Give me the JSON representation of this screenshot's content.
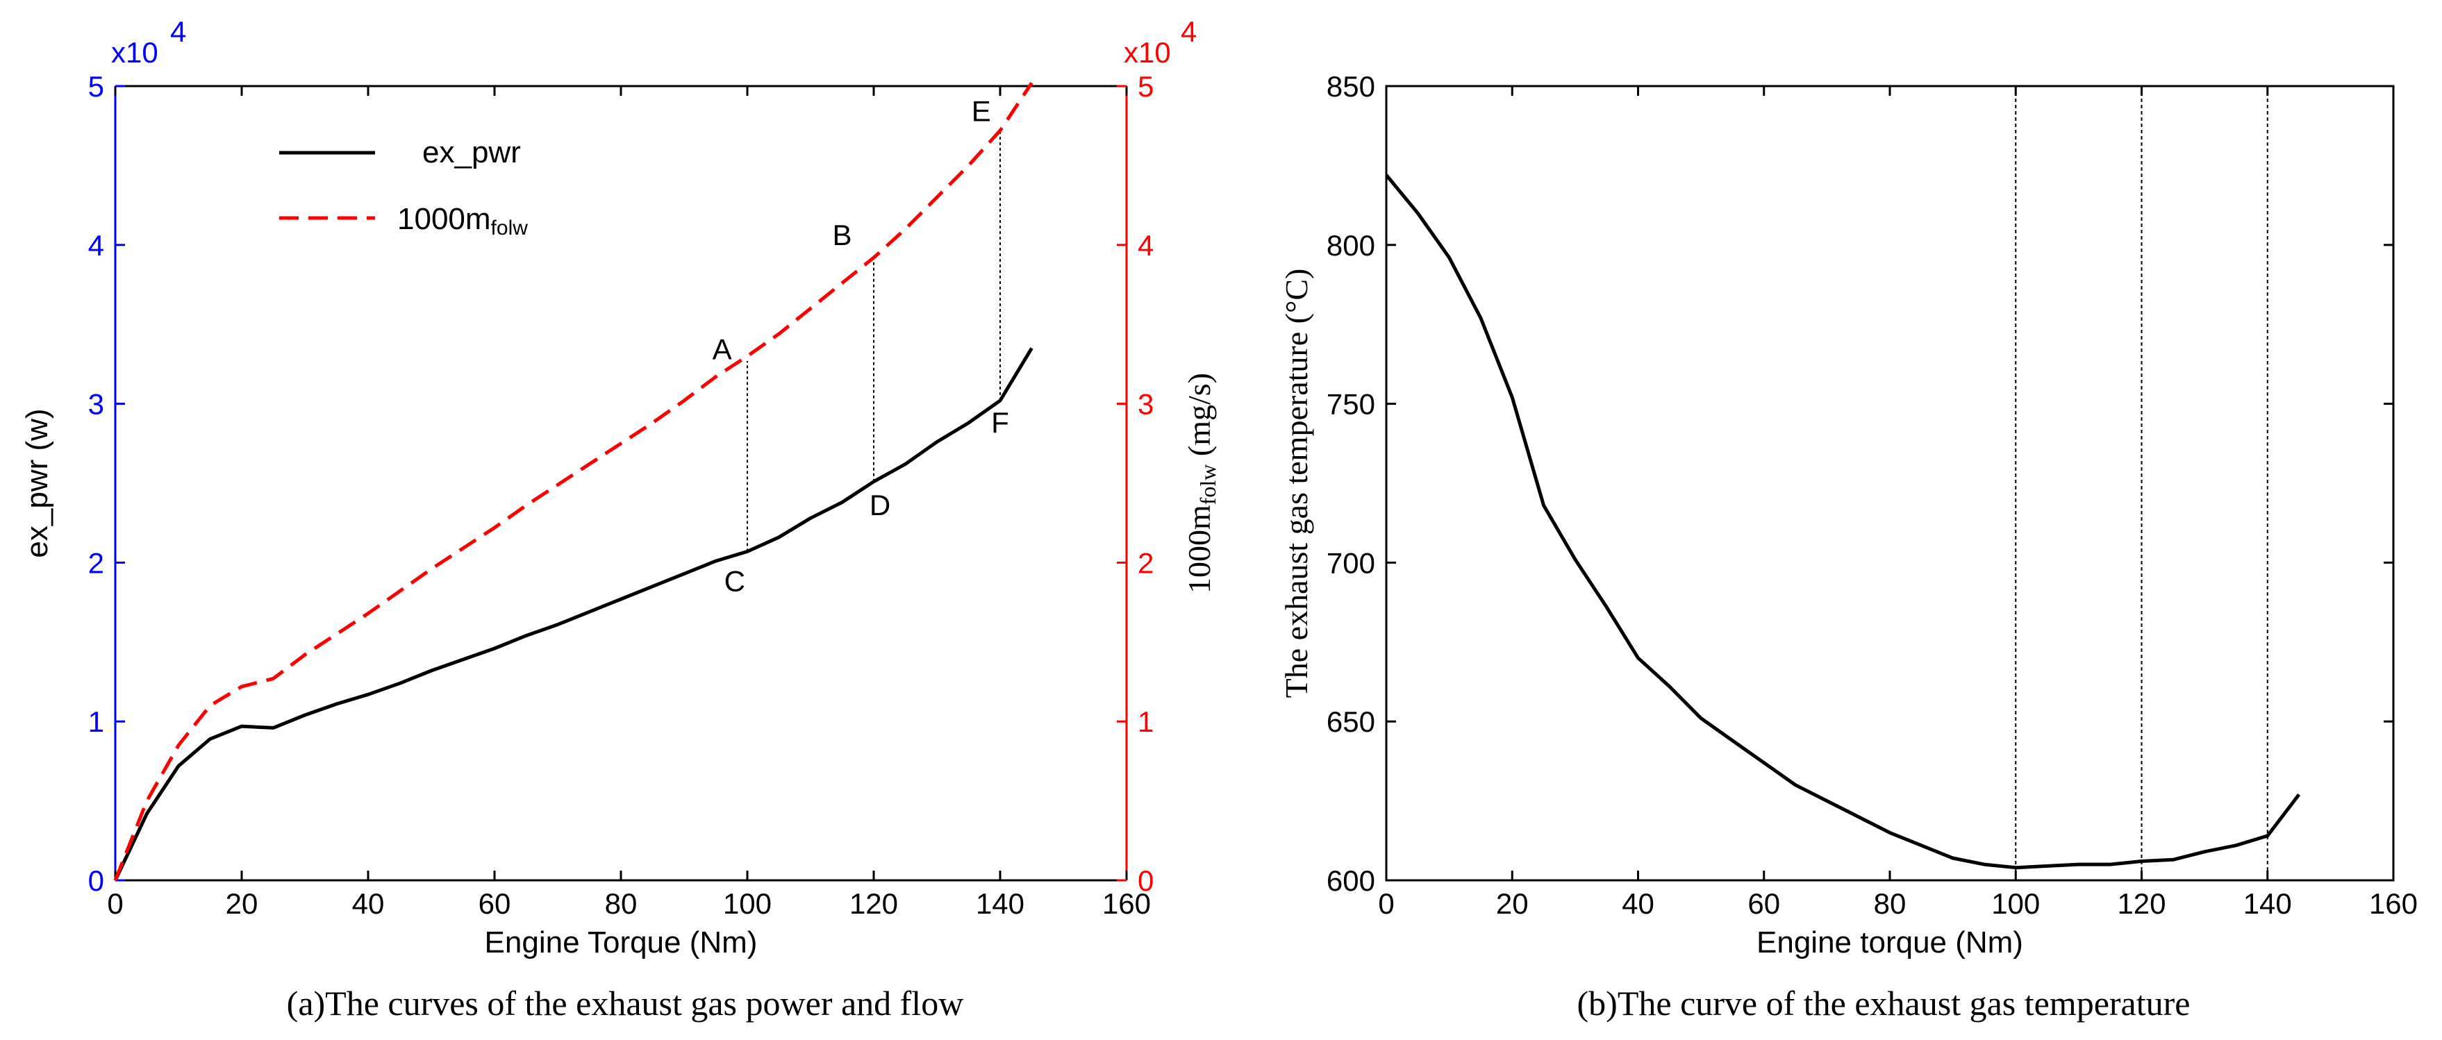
{
  "chart_data": [
    {
      "type": "line",
      "caption": "(a)The curves of the exhaust gas power and flow",
      "xlabel": "Engine Torque (Nm)",
      "xlim": [
        0,
        160
      ],
      "xticks": [
        0,
        20,
        40,
        60,
        80,
        100,
        120,
        140,
        160
      ],
      "ylabel_left": "ex_pwr (w)",
      "ylim_left": [
        0,
        5
      ],
      "yticks_left": [
        0,
        1,
        2,
        3,
        4,
        5
      ],
      "left_scale": "x10",
      "left_scale_exp": "4",
      "left_color": "#0000ff",
      "ylabel_right_main": "1000m",
      "ylabel_right_sub": "folw",
      "ylabel_right_unit": " (mg/s)",
      "ylim_right": [
        0,
        5
      ],
      "yticks_right": [
        0,
        1,
        2,
        3,
        4,
        5
      ],
      "right_scale": "x10",
      "right_scale_exp": "4",
      "right_color": "#ff0000",
      "legend_position": "top-left",
      "series": [
        {
          "name": "ex_pwr",
          "legend_label": "ex_pwr",
          "color": "#000000",
          "style": "solid",
          "axis": "left",
          "x": [
            0,
            5,
            10,
            15,
            20,
            25,
            30,
            35,
            40,
            45,
            50,
            55,
            60,
            65,
            70,
            75,
            80,
            85,
            90,
            95,
            100,
            105,
            110,
            115,
            120,
            125,
            130,
            135,
            140,
            145
          ],
          "y": [
            0.0,
            0.42,
            0.72,
            0.89,
            0.97,
            0.96,
            1.04,
            1.11,
            1.17,
            1.24,
            1.32,
            1.39,
            1.46,
            1.54,
            1.61,
            1.69,
            1.77,
            1.85,
            1.93,
            2.01,
            2.07,
            2.16,
            2.28,
            2.38,
            2.51,
            2.62,
            2.76,
            2.88,
            3.02,
            3.35
          ]
        },
        {
          "name": "1000m_folw",
          "legend_main": "1000m",
          "legend_sub": "folw",
          "color": "#ff0000",
          "style": "dashed",
          "axis": "right",
          "x": [
            0,
            5,
            10,
            15,
            20,
            25,
            30,
            35,
            40,
            45,
            50,
            55,
            60,
            65,
            70,
            75,
            80,
            85,
            90,
            95,
            100,
            105,
            110,
            115,
            120,
            125,
            130,
            135,
            140,
            145
          ],
          "y": [
            0.0,
            0.5,
            0.85,
            1.1,
            1.22,
            1.27,
            1.42,
            1.55,
            1.68,
            1.82,
            1.96,
            2.09,
            2.22,
            2.36,
            2.49,
            2.62,
            2.75,
            2.88,
            3.02,
            3.17,
            3.3,
            3.44,
            3.6,
            3.76,
            3.92,
            4.1,
            4.3,
            4.5,
            4.72,
            5.02
          ]
        }
      ],
      "vlines": [
        {
          "x": 100,
          "y_from": 2.07,
          "y_to": 3.27
        },
        {
          "x": 120,
          "y_from": 2.51,
          "y_to": 3.92
        },
        {
          "x": 140,
          "y_from": 3.02,
          "y_to": 4.72
        }
      ],
      "annotations": [
        {
          "text": "A",
          "x": 96,
          "y": 3.28
        },
        {
          "text": "B",
          "x": 115,
          "y": 4.0
        },
        {
          "text": "C",
          "x": 98,
          "y": 1.82
        },
        {
          "text": "D",
          "x": 121,
          "y": 2.3
        },
        {
          "text": "E",
          "x": 137,
          "y": 4.78
        },
        {
          "text": "F",
          "x": 140,
          "y": 2.82
        }
      ]
    },
    {
      "type": "line",
      "caption": "(b)The curve of the exhaust gas temperature",
      "xlabel": "Engine torque (Nm)",
      "xlim": [
        0,
        160
      ],
      "xticks": [
        0,
        20,
        40,
        60,
        80,
        100,
        120,
        140,
        160
      ],
      "ylabel": "The exhaust gas temperature (°C)",
      "ylim": [
        600,
        850
      ],
      "yticks": [
        600,
        650,
        700,
        750,
        800,
        850
      ],
      "series": [
        {
          "name": "temperature",
          "color": "#000000",
          "style": "solid",
          "x": [
            0,
            5,
            10,
            15,
            20,
            25,
            30,
            35,
            40,
            45,
            50,
            55,
            60,
            65,
            70,
            75,
            80,
            85,
            90,
            95,
            100,
            105,
            110,
            115,
            120,
            125,
            130,
            135,
            140,
            145
          ],
          "y": [
            822,
            810,
            796,
            777,
            752,
            718,
            701,
            686,
            670,
            661,
            651,
            644,
            637,
            630,
            625,
            620,
            615,
            611,
            607,
            605,
            604,
            604.5,
            605,
            605,
            606,
            606.5,
            609,
            611,
            614,
            627
          ]
        }
      ],
      "vlines": [
        100,
        120,
        140
      ]
    }
  ]
}
